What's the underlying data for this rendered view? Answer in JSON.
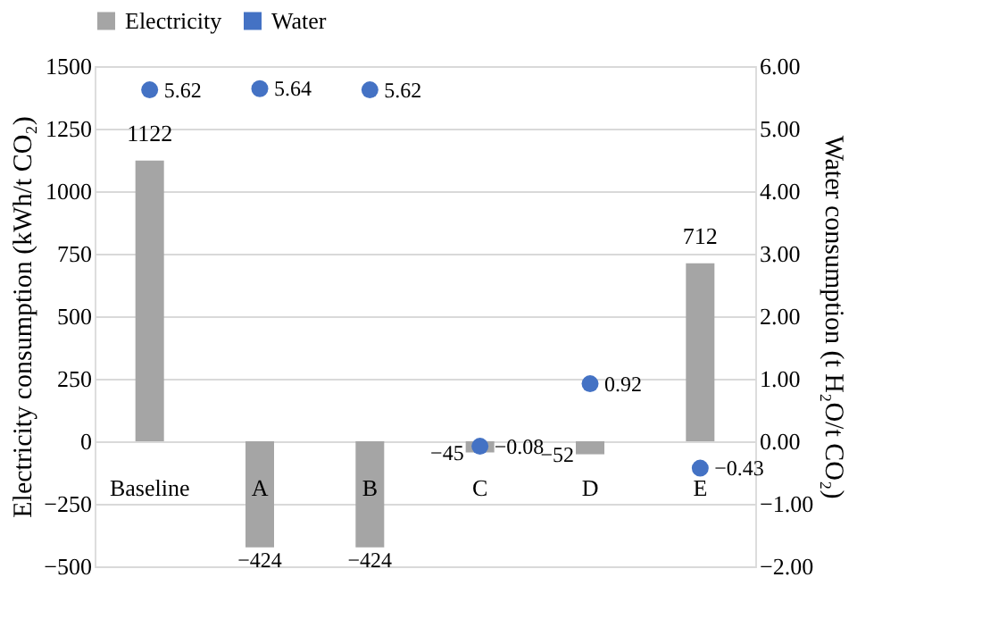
{
  "chart_data": {
    "type": "bar",
    "categories": [
      "Baseline",
      "A",
      "B",
      "C",
      "D",
      "E"
    ],
    "ylabel": "Electricity consumption (kWh/t CO₂)",
    "y2label": "Water consumption (t H₂O/t CO₂)",
    "ylim": [
      -500,
      1500
    ],
    "yticks": [
      -500,
      -250,
      0,
      250,
      500,
      750,
      1000,
      1250,
      1500
    ],
    "y2lim": [
      -2,
      6
    ],
    "y2ticks": [
      {
        "value": -2,
        "label": "−2.00"
      },
      {
        "value": -1,
        "label": "−1.00"
      },
      {
        "value": 0,
        "label": "0.00"
      },
      {
        "value": 1,
        "label": "1.00"
      },
      {
        "value": 2,
        "label": "2.00"
      },
      {
        "value": 3,
        "label": "3.00"
      },
      {
        "value": 4,
        "label": "4.00"
      },
      {
        "value": 5,
        "label": "5.00"
      },
      {
        "value": 6,
        "label": "6.00"
      }
    ],
    "series": [
      {
        "name": "Electricity",
        "type": "bar",
        "color": "#a5a5a5",
        "values": [
          1122,
          -424,
          -424,
          -45,
          -52,
          712
        ],
        "value_labels": [
          "1122",
          "−424",
          "−424",
          "−45",
          "−52",
          "712"
        ]
      },
      {
        "name": "Water",
        "type": "scatter",
        "axis": "y2",
        "color": "#4472c4",
        "marker": "circle",
        "values": [
          5.62,
          5.64,
          5.62,
          -0.08,
          0.92,
          -0.43
        ],
        "value_labels": [
          "5.62",
          "5.64",
          "5.62",
          "−0.08",
          "0.92",
          "−0.43"
        ]
      }
    ],
    "grid": "y",
    "legend": "top"
  }
}
